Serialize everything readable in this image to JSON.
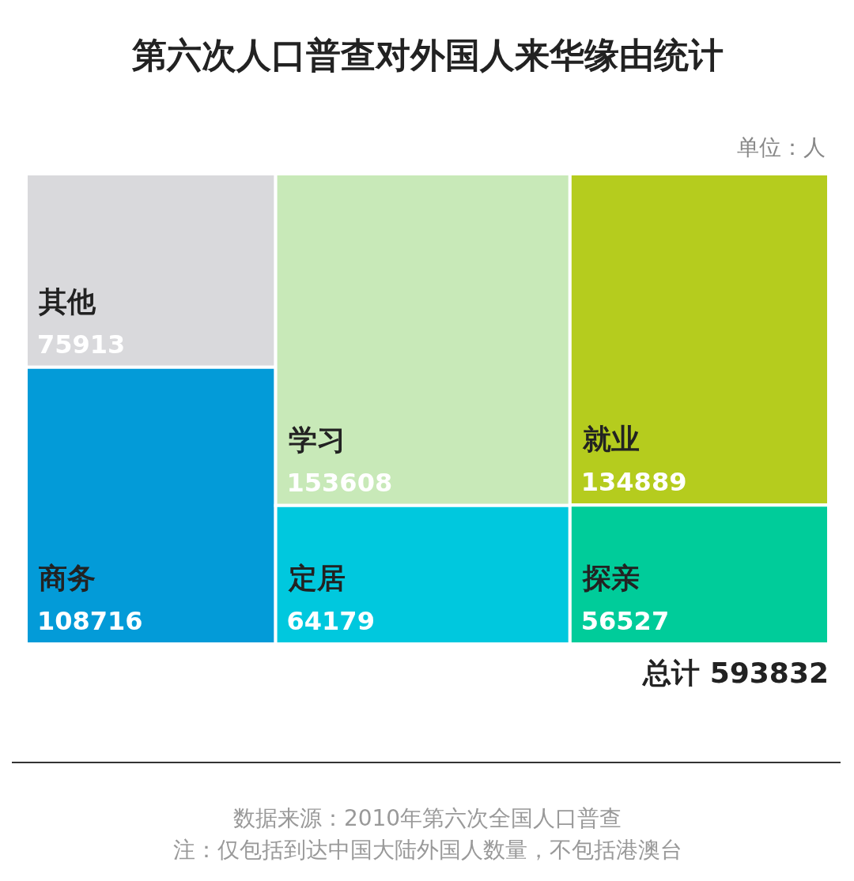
{
  "chart_data": {
    "type": "other",
    "title": "第六次人口普查对外国人来华缘由统计",
    "categories": [
      "其他",
      "商务",
      "学习",
      "定居",
      "就业",
      "探亲"
    ],
    "values": [
      75913,
      108716,
      153608,
      64179,
      134889,
      56527
    ],
    "colors": [
      "#d9d9dc",
      "#039bd8",
      "#c8e9b8",
      "#00c8de",
      "#b5cc1e",
      "#00cc9a"
    ],
    "data_labels": true,
    "annotations": [
      "单位：人",
      "总计 593832",
      "数据来源：2010年第六次全国人口普查",
      "注：仅包括到达中国大陆外国人数量，不包括港澳台"
    ]
  }
}
